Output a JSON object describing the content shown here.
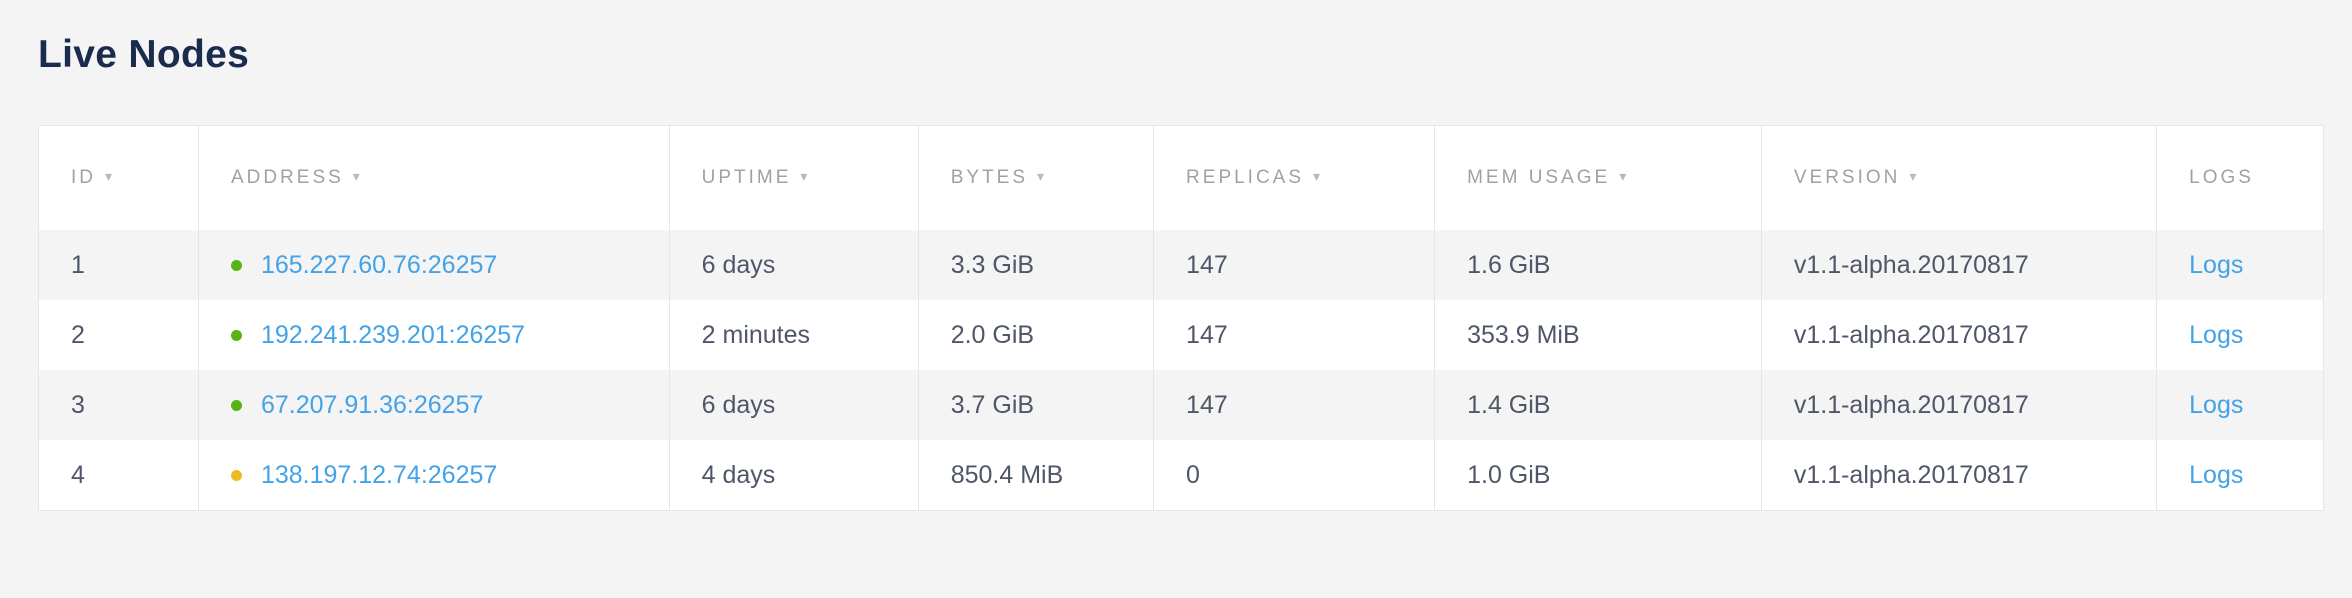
{
  "page": {
    "title": "Live Nodes"
  },
  "colors": {
    "page_background": "#f4f4f5",
    "table_background": "#ffffff",
    "stripe_row": "#f4f4f5",
    "border": "#e5e6e8",
    "title_text": "#1b2b4e",
    "header_text": "#9da2a8",
    "body_text": "#4e5668",
    "link": "#44a2e6",
    "status_healthy": "#57b414",
    "status_suspect": "#eeba23"
  },
  "icons": {
    "sort_icon": "▾",
    "status_dot_icon": "●"
  },
  "table": {
    "sort_icon": "▾",
    "columns": [
      {
        "key": "id",
        "label": "ID",
        "sortable": true
      },
      {
        "key": "address",
        "label": "ADDRESS",
        "sortable": true
      },
      {
        "key": "uptime",
        "label": "UPTIME",
        "sortable": true
      },
      {
        "key": "bytes",
        "label": "BYTES",
        "sortable": true
      },
      {
        "key": "replicas",
        "label": "REPLICAS",
        "sortable": true
      },
      {
        "key": "mem_usage",
        "label": "MEM USAGE",
        "sortable": true
      },
      {
        "key": "version",
        "label": "VERSION",
        "sortable": true
      },
      {
        "key": "logs",
        "label": "LOGS",
        "sortable": false
      }
    ],
    "rows": [
      {
        "id": "1",
        "status": "healthy",
        "address": "165.227.60.76:26257",
        "uptime": "6 days",
        "bytes": "3.3 GiB",
        "replicas": "147",
        "mem_usage": "1.6 GiB",
        "version": "v1.1-alpha.20170817",
        "logs_label": "Logs"
      },
      {
        "id": "2",
        "status": "healthy",
        "address": "192.241.239.201:26257",
        "uptime": "2 minutes",
        "bytes": "2.0 GiB",
        "replicas": "147",
        "mem_usage": "353.9 MiB",
        "version": "v1.1-alpha.20170817",
        "logs_label": "Logs"
      },
      {
        "id": "3",
        "status": "healthy",
        "address": "67.207.91.36:26257",
        "uptime": "6 days",
        "bytes": "3.7 GiB",
        "replicas": "147",
        "mem_usage": "1.4 GiB",
        "version": "v1.1-alpha.20170817",
        "logs_label": "Logs"
      },
      {
        "id": "4",
        "status": "suspect",
        "address": "138.197.12.74:26257",
        "uptime": "4 days",
        "bytes": "850.4 MiB",
        "replicas": "0",
        "mem_usage": "1.0 GiB",
        "version": "v1.1-alpha.20170817",
        "logs_label": "Logs"
      }
    ]
  }
}
